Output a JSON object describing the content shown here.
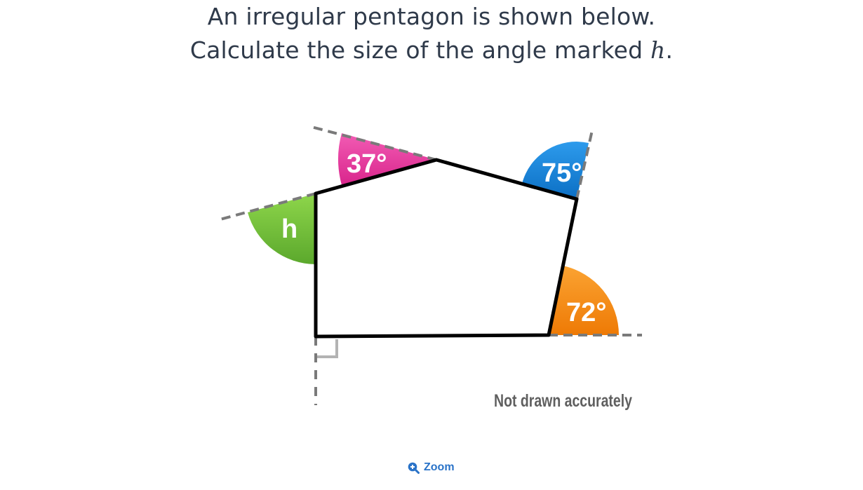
{
  "question": {
    "line1": "An irregular pentagon is shown below.",
    "line2_prefix": "Calculate the size of the angle marked ",
    "line2_variable": "h",
    "line2_suffix": "."
  },
  "diagram": {
    "angles": [
      {
        "label": "37°",
        "color": "#ec3fa3"
      },
      {
        "label": "75°",
        "color": "#1a8be0"
      },
      {
        "label": "72°",
        "color": "#f7901e"
      },
      {
        "label": "h",
        "color": "#72c23b"
      }
    ],
    "note": "Not drawn accurately"
  },
  "zoom": {
    "label": "Zoom",
    "icon": "zoom-in-icon"
  }
}
